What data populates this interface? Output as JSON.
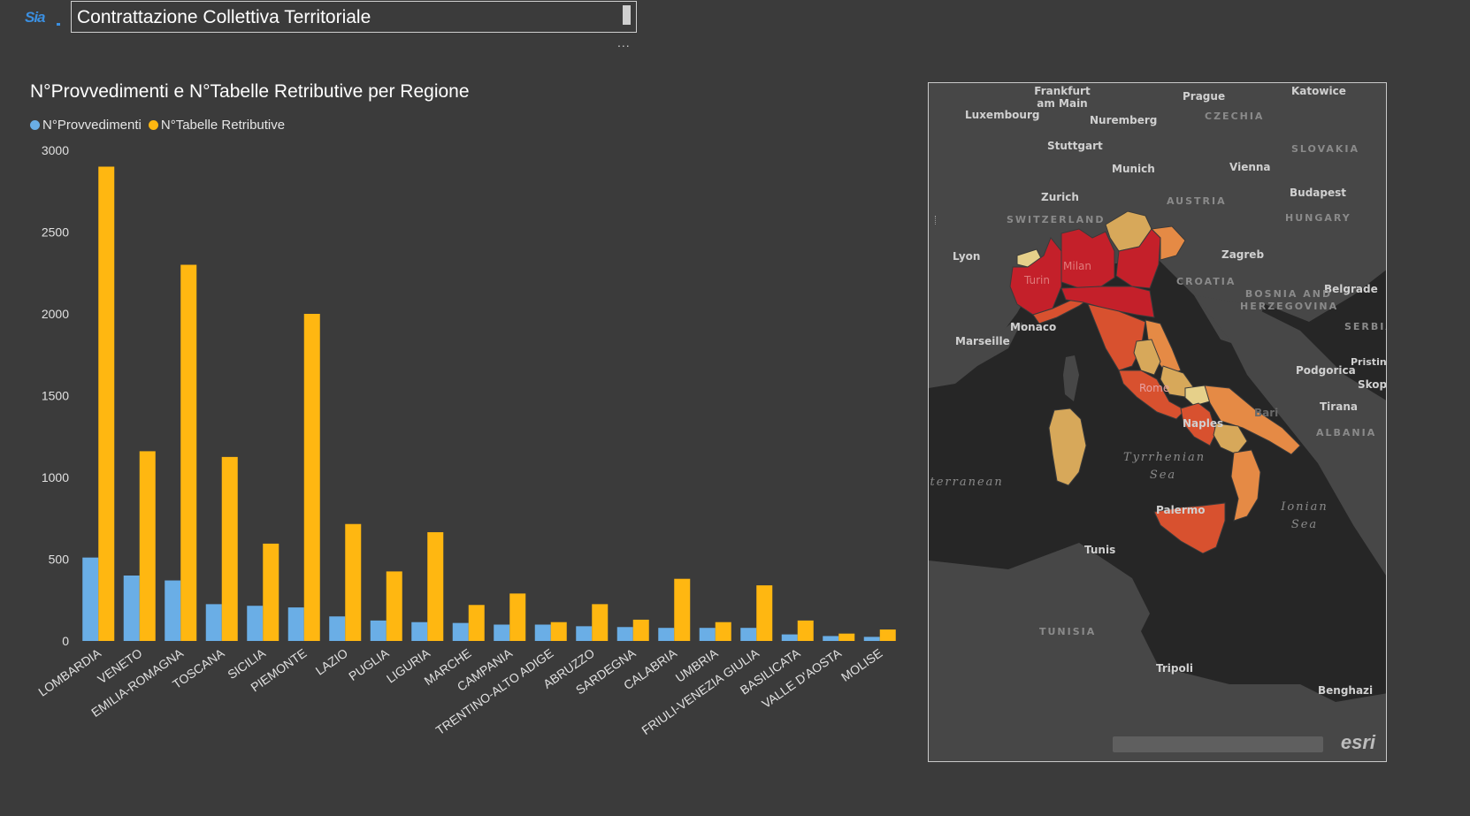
{
  "header": {
    "logo_text": "Sia",
    "title": "Contrattazione Collettiva Territoriale",
    "more_options": "..."
  },
  "colors": {
    "background": "#3b3b3b",
    "series_provvedimenti": "#6aaee6",
    "series_tabelle": "#ffb711",
    "map_high": "#c4202a",
    "map_mid_high": "#d8512f",
    "map_mid": "#e58a45",
    "map_mid_low": "#d7a85a",
    "map_low": "#e6d08a"
  },
  "chart_data": {
    "type": "bar",
    "title": "N°Provvedimenti e N°Tabelle Retributive per Regione",
    "xlabel": "",
    "ylabel": "",
    "ylim": [
      0,
      3000
    ],
    "yticks": [
      0,
      500,
      1000,
      1500,
      2000,
      2500,
      3000
    ],
    "legend_position": "top-left",
    "grid": false,
    "categories": [
      "LOMBARDIA",
      "VENETO",
      "EMILIA-ROMAGNA",
      "TOSCANA",
      "SICILIA",
      "PIEMONTE",
      "LAZIO",
      "PUGLIA",
      "LIGURIA",
      "MARCHE",
      "CAMPANIA",
      "TRENTINO-ALTO ADIGE",
      "ABRUZZO",
      "SARDEGNA",
      "CALABRIA",
      "UMBRIA",
      "FRIULI-VENEZIA GIULIA",
      "BASILICATA",
      "VALLE D'AOSTA",
      "MOLISE"
    ],
    "series": [
      {
        "name": "N°Provvedimenti",
        "color": "#6aaee6",
        "values": [
          510,
          400,
          370,
          225,
          215,
          205,
          150,
          125,
          115,
          110,
          100,
          100,
          90,
          85,
          80,
          80,
          80,
          40,
          30,
          25
        ]
      },
      {
        "name": "N°Tabelle Retributive",
        "color": "#ffb711",
        "values": [
          2900,
          1160,
          2300,
          1125,
          595,
          2000,
          715,
          425,
          665,
          220,
          290,
          115,
          225,
          130,
          380,
          115,
          340,
          125,
          45,
          70
        ]
      }
    ]
  },
  "map": {
    "cities": [
      "Frankfurt am Main",
      "Prague",
      "Katowice",
      "Luxembourg",
      "Nuremberg",
      "Stuttgart",
      "Munich",
      "Vienna",
      "Zurich",
      "Budapest",
      "Lyon",
      "Zagreb",
      "Belgrade",
      "Milan",
      "Turin",
      "Monaco",
      "Marseille",
      "Podgorica",
      "Pristina",
      "Skopje",
      "Tirana",
      "Bari",
      "Rome",
      "Naples",
      "Palermo",
      "Tunis",
      "Tripoli",
      "Benghazi"
    ],
    "countries": [
      "CZECHIA",
      "SLOVAKIA",
      "AUSTRIA",
      "SWITZERLAND",
      "HUNGARY",
      "CROATIA",
      "BOSNIA AND HERZEGOVINA",
      "SERBIA",
      "ALBANIA",
      "TUNISIA"
    ],
    "seas": [
      "Tyrrhenian Sea",
      "Mediterranean Sea",
      "Ionian Sea"
    ],
    "attribution_logo": "esri"
  }
}
